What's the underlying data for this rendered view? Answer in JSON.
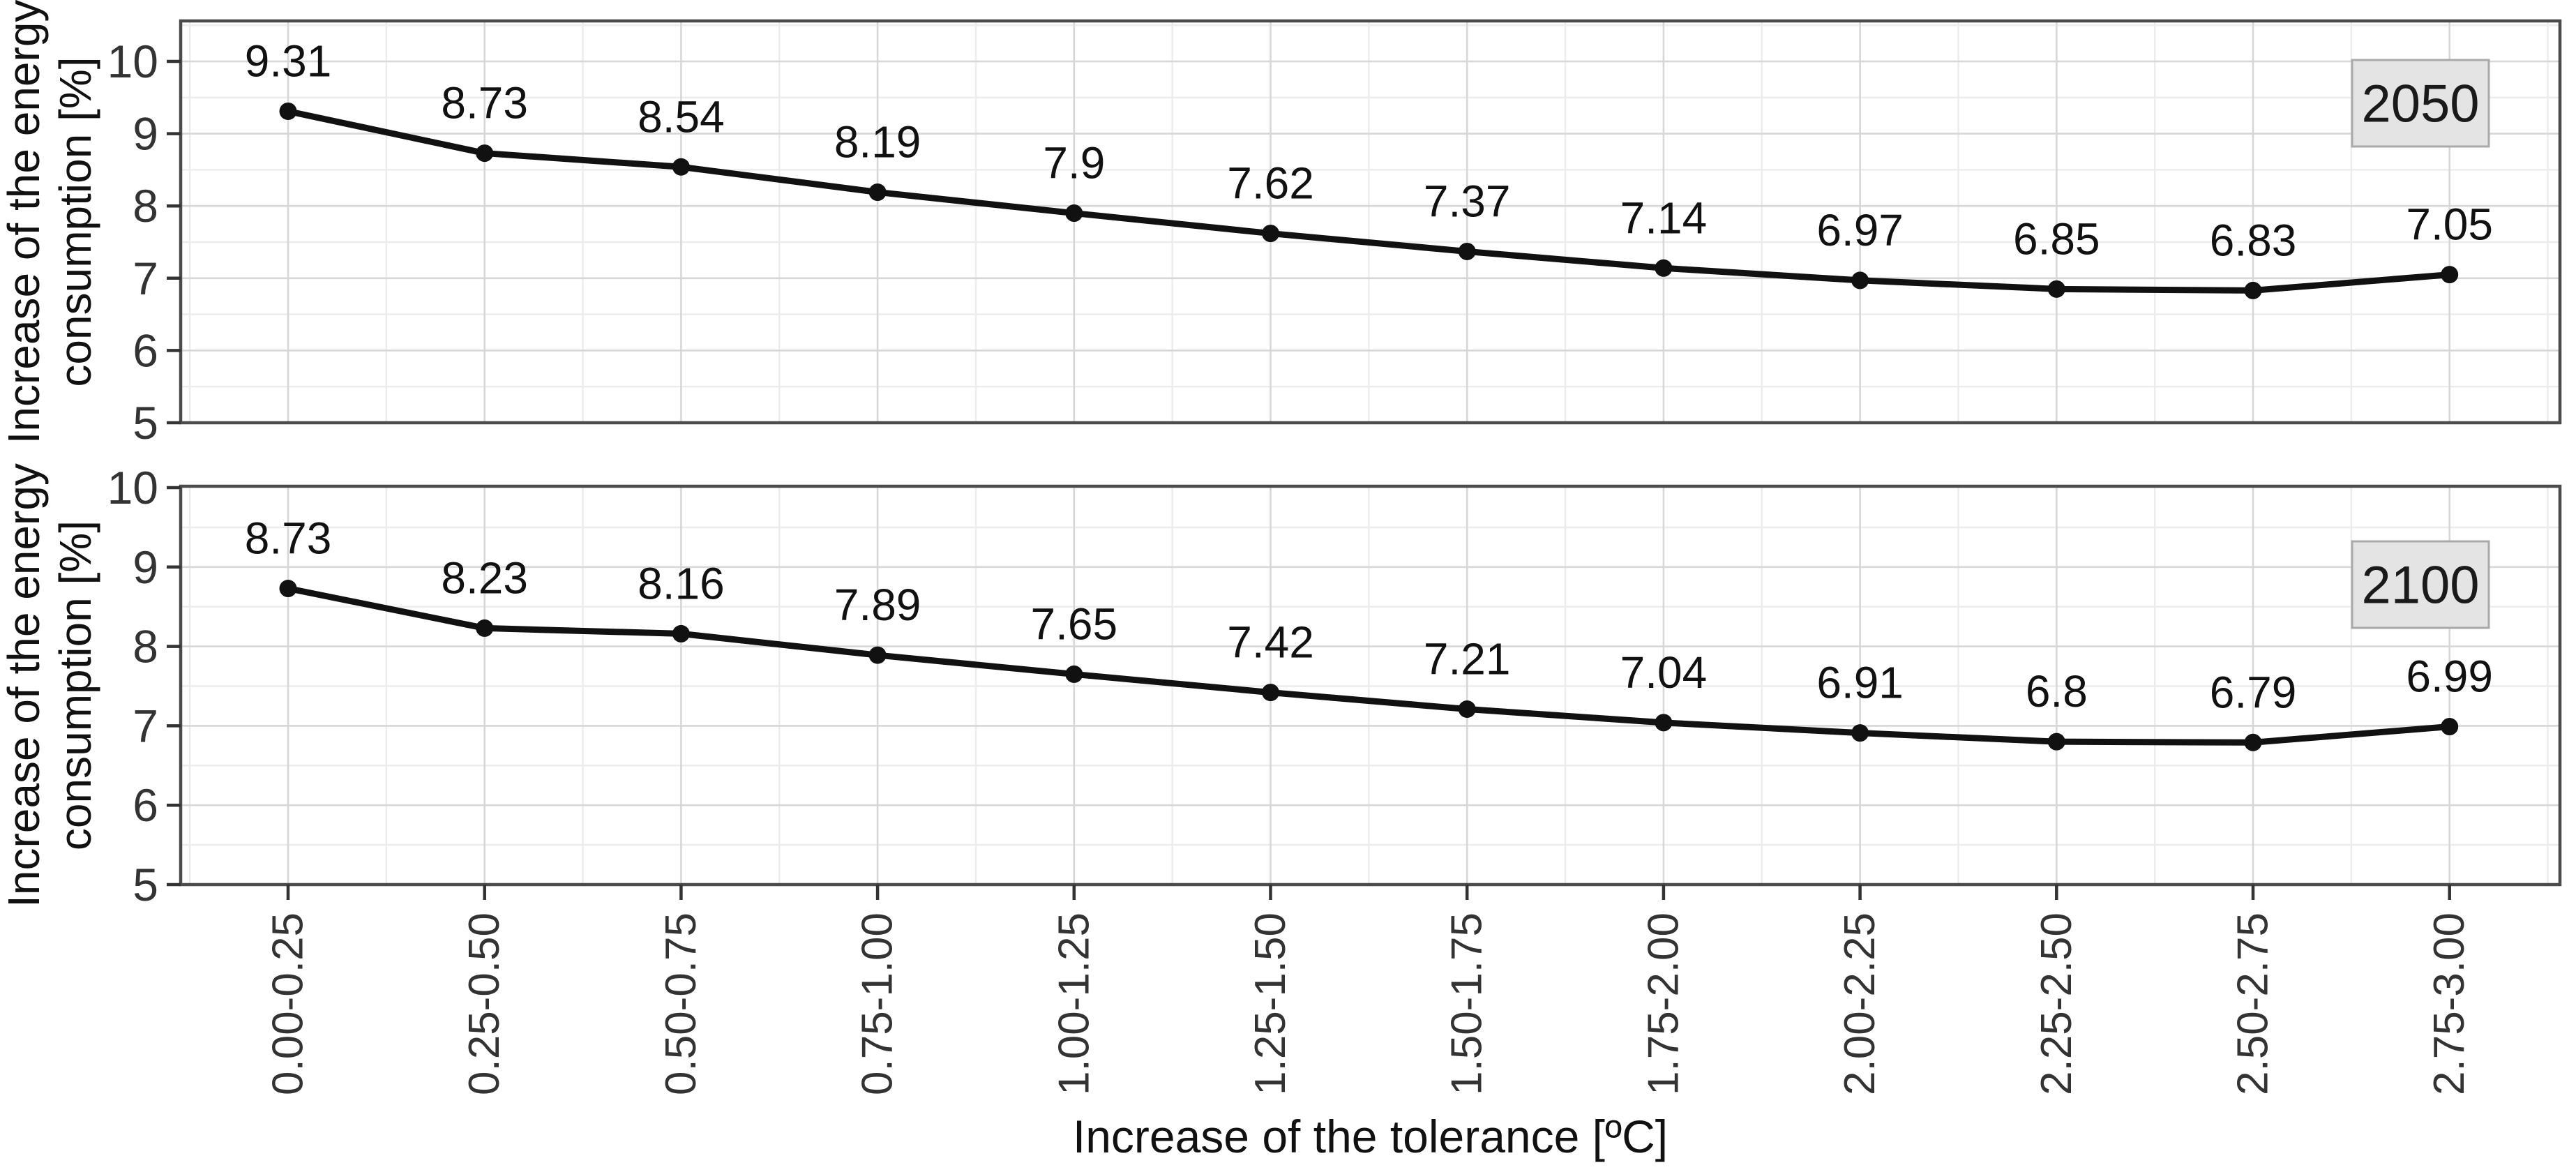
{
  "chart_data": {
    "type": "line",
    "title": "",
    "facet_labels": [
      "2050",
      "2100"
    ],
    "categories": [
      "0.00-0.25",
      "0.25-0.50",
      "0.50-0.75",
      "0.75-1.00",
      "1.00-1.25",
      "1.25-1.50",
      "1.50-1.75",
      "1.75-2.00",
      "2.00-2.25",
      "2.25-2.50",
      "2.50-2.75",
      "2.75-3.00"
    ],
    "series": [
      {
        "name": "2050",
        "values": [
          9.31,
          8.73,
          8.54,
          8.19,
          7.9,
          7.62,
          7.37,
          7.14,
          6.97,
          6.85,
          6.83,
          7.05
        ],
        "labels": [
          "9.31",
          "8.73",
          "8.54",
          "8.19",
          "7.9",
          "7.62",
          "7.37",
          "7.14",
          "6.97",
          "6.85",
          "6.83",
          "7.05"
        ]
      },
      {
        "name": "2100",
        "values": [
          8.73,
          8.23,
          8.16,
          7.89,
          7.65,
          7.42,
          7.21,
          7.04,
          6.91,
          6.8,
          6.79,
          6.99
        ],
        "labels": [
          "8.73",
          "8.23",
          "8.16",
          "7.89",
          "7.65",
          "7.42",
          "7.21",
          "7.04",
          "6.91",
          "6.8",
          "6.79",
          "6.99"
        ]
      }
    ],
    "xlabel": "Increase of the tolerance [ºC]",
    "ylabel": "Increase of the energy consumption [%]",
    "ylabel_lines": [
      "Increase of the energy",
      "consumption [%]"
    ],
    "y_ticks": [
      "5",
      "6",
      "7",
      "8",
      "9",
      "10"
    ],
    "y_tick_values": [
      5,
      6,
      7,
      8,
      9,
      10
    ],
    "ylim": [
      5,
      10.5
    ],
    "grid": "major and minor gridlines, light gray, white panel background (theme_bw)",
    "legend_position": "none",
    "marker": "filled black circle",
    "line_style": "solid black"
  },
  "colors": {
    "series": "#111111",
    "data_label": "#111111",
    "grid_major": "#d7d7d7",
    "grid_minor": "#ececec",
    "panel_border": "#4b4b4b",
    "tick": "#333333",
    "tick_label": "#333333",
    "axis_title": "#111111",
    "facet_fill": "#e4e4e4",
    "facet_border": "#a9a9a9",
    "facet_text": "#1a1a1a",
    "background": "#ffffff"
  }
}
